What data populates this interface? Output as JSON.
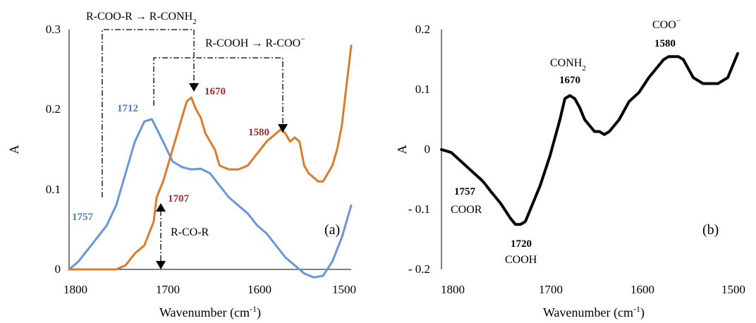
{
  "colors": {
    "blue": "#6a95d6",
    "orange": "#d97c2b",
    "black": "#000000",
    "red_label": "#a52a2a",
    "blue_label": "#4f7fcf"
  },
  "chart_data": [
    {
      "type": "line",
      "panel_label": "(a)",
      "xlabel": "Wavenumber (cm-1)",
      "xlabel_main": "Wavenumber (cm",
      "xlabel_sup": "-1",
      "xlabel_close": ")",
      "ylabel": "A",
      "xlim": [
        1800,
        1500
      ],
      "ylim": [
        0,
        0.3
      ],
      "xticks": [
        "1800",
        "1700",
        "1600",
        "1500"
      ],
      "yticks": [
        "0",
        "0.1",
        "0.2",
        "0.3"
      ],
      "xtick_values": [
        1800,
        1700,
        1600,
        1500
      ],
      "ytick_values": [
        0,
        0.1,
        0.2,
        0.3
      ],
      "grid": false,
      "series": [
        {
          "color": "blue",
          "x": [
            1800,
            1790,
            1780,
            1770,
            1760,
            1750,
            1740,
            1730,
            1720,
            1712,
            1700,
            1690,
            1680,
            1670,
            1660,
            1650,
            1640,
            1630,
            1620,
            1610,
            1600,
            1590,
            1580,
            1570,
            1560,
            1550,
            1540,
            1530,
            1520,
            1510,
            1500
          ],
          "y": [
            0.0,
            0.01,
            0.025,
            0.04,
            0.055,
            0.08,
            0.12,
            0.16,
            0.185,
            0.188,
            0.16,
            0.135,
            0.128,
            0.125,
            0.126,
            0.12,
            0.105,
            0.09,
            0.08,
            0.07,
            0.055,
            0.045,
            0.03,
            0.015,
            0.005,
            -0.005,
            -0.01,
            -0.008,
            0.01,
            0.04,
            0.08
          ]
        },
        {
          "color": "orange",
          "x": [
            1800,
            1780,
            1760,
            1750,
            1740,
            1730,
            1720,
            1710,
            1707,
            1700,
            1690,
            1680,
            1675,
            1670,
            1665,
            1660,
            1655,
            1650,
            1645,
            1640,
            1630,
            1620,
            1610,
            1600,
            1590,
            1580,
            1575,
            1570,
            1565,
            1560,
            1555,
            1550,
            1545,
            1540,
            1535,
            1530,
            1525,
            1520,
            1515,
            1510,
            1505,
            1500
          ],
          "y": [
            0.0,
            0.0,
            0.0,
            0.0,
            0.005,
            0.02,
            0.03,
            0.06,
            0.09,
            0.11,
            0.15,
            0.19,
            0.21,
            0.215,
            0.2,
            0.19,
            0.17,
            0.16,
            0.15,
            0.13,
            0.125,
            0.125,
            0.13,
            0.145,
            0.16,
            0.17,
            0.175,
            0.17,
            0.16,
            0.165,
            0.16,
            0.13,
            0.12,
            0.115,
            0.11,
            0.11,
            0.12,
            0.13,
            0.15,
            0.18,
            0.23,
            0.28
          ]
        }
      ],
      "annotations": {
        "ester_to_amide": "R-COO-R → R-CONH",
        "ester_to_amide_sub": "2",
        "acid_to_carboxylate": "R-COOH → R-COO",
        "acid_to_carboxylate_sup": "−",
        "ketone": "R-CO-R",
        "peak_1712": "1712",
        "peak_1670": "1670",
        "peak_1580": "1580",
        "peak_1757": "1757",
        "peak_1707": "1707"
      }
    },
    {
      "type": "line",
      "panel_label": "(b)",
      "xlabel": "Wavenumber (cm-1)",
      "xlabel_main": "Wavenumber (cm",
      "xlabel_sup": "-1",
      "xlabel_close": ")",
      "ylabel": "A",
      "xlim": [
        1800,
        1500
      ],
      "ylim": [
        -0.2,
        0.2
      ],
      "xticks": [
        "1800",
        "1700",
        "1600",
        "1500"
      ],
      "yticks": [
        "- 0.2",
        "- 0.1",
        "0",
        "0.1",
        "0.2"
      ],
      "xtick_values": [
        1800,
        1700,
        1600,
        1500
      ],
      "ytick_values": [
        -0.2,
        -0.1,
        0,
        0.1,
        0.2
      ],
      "grid": false,
      "series": [
        {
          "color": "black",
          "x": [
            1800,
            1790,
            1780,
            1770,
            1760,
            1757,
            1750,
            1740,
            1730,
            1725,
            1720,
            1715,
            1710,
            1700,
            1690,
            1680,
            1675,
            1670,
            1665,
            1660,
            1655,
            1650,
            1645,
            1640,
            1635,
            1630,
            1620,
            1610,
            1600,
            1590,
            1580,
            1575,
            1570,
            1565,
            1560,
            1555,
            1550,
            1545,
            1540,
            1535,
            1530,
            1520,
            1510,
            1500
          ],
          "y": [
            0.0,
            -0.005,
            -0.02,
            -0.035,
            -0.05,
            -0.055,
            -0.07,
            -0.09,
            -0.115,
            -0.125,
            -0.125,
            -0.12,
            -0.1,
            -0.06,
            -0.01,
            0.05,
            0.085,
            0.09,
            0.085,
            0.07,
            0.05,
            0.04,
            0.03,
            0.03,
            0.025,
            0.03,
            0.05,
            0.08,
            0.095,
            0.12,
            0.14,
            0.15,
            0.155,
            0.155,
            0.155,
            0.15,
            0.135,
            0.12,
            0.115,
            0.11,
            0.11,
            0.11,
            0.12,
            0.16
          ]
        }
      ],
      "annotations": {
        "peak_1757": "1757",
        "coor": "COOR",
        "peak_1720": "1720",
        "cooh": "COOH",
        "conh2": "CONH",
        "conh2_sub": "2",
        "peak_1670": "1670",
        "coo": "COO",
        "coo_sup": "−",
        "peak_1580": "1580"
      }
    }
  ]
}
